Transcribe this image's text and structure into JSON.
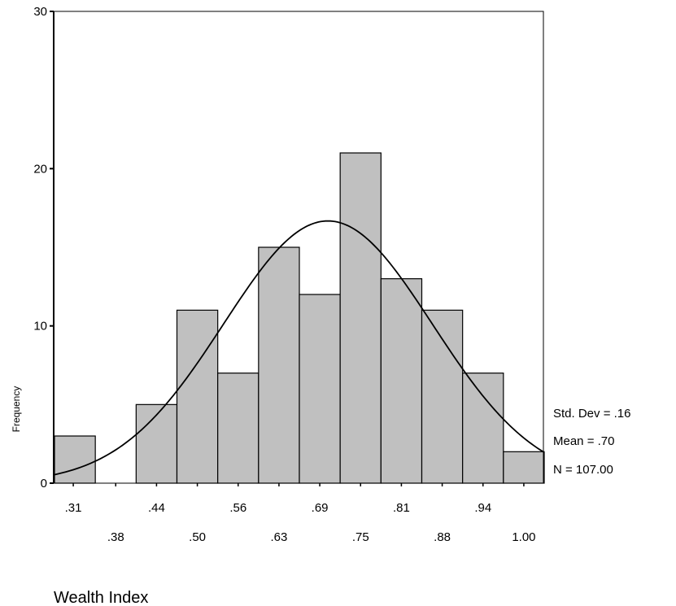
{
  "chart_data": {
    "type": "bar",
    "subtype": "histogram-with-normal-curve",
    "title": "",
    "xlabel": "Wealth Index",
    "ylabel": "Frequency",
    "ylim": [
      0,
      30
    ],
    "xlim": [
      0.28,
      1.03
    ],
    "y_ticks": [
      "0",
      "10",
      "20",
      "30"
    ],
    "y_tick_values": [
      0,
      10,
      20,
      30
    ],
    "x_tick_labels": [
      ".31",
      ".38",
      ".44",
      ".50",
      ".56",
      ".63",
      ".69",
      ".75",
      ".81",
      ".88",
      ".94",
      "1.00"
    ],
    "x_tick_values": [
      0.31,
      0.375,
      0.4375,
      0.5,
      0.5625,
      0.625,
      0.6875,
      0.75,
      0.8125,
      0.875,
      0.9375,
      1.0
    ],
    "bin_width": 0.0625,
    "bins": [
      {
        "center": 0.3125,
        "count": 3
      },
      {
        "center": 0.375,
        "count": 0
      },
      {
        "center": 0.4375,
        "count": 5
      },
      {
        "center": 0.5,
        "count": 11
      },
      {
        "center": 0.5625,
        "count": 7
      },
      {
        "center": 0.625,
        "count": 15
      },
      {
        "center": 0.6875,
        "count": 12
      },
      {
        "center": 0.75,
        "count": 21
      },
      {
        "center": 0.8125,
        "count": 13
      },
      {
        "center": 0.875,
        "count": 11
      },
      {
        "center": 0.9375,
        "count": 7
      },
      {
        "center": 1.0,
        "count": 2
      }
    ],
    "normal_curve": {
      "mean": 0.7,
      "std_dev": 0.16,
      "n": 107
    },
    "stats": {
      "std_dev_label": "Std. Dev = .16",
      "mean_label": "Mean = .70",
      "n_label": "N = 107.00"
    },
    "colors": {
      "bar_fill": "#c0c0c0",
      "bar_stroke": "#000000",
      "curve": "#000000"
    },
    "grid": false,
    "legend": "none"
  }
}
